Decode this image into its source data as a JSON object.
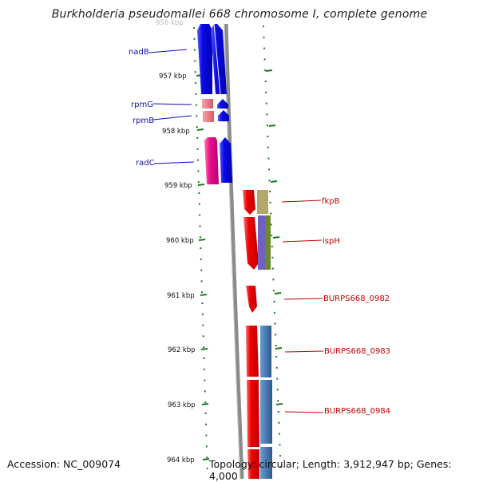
{
  "title": "Burkholderia pseudomallei 668 chromosome I, complete genome",
  "footer": {
    "accession": "Accession: NC_009074",
    "summary": "Topology: circular; Length: 3,912,947 bp; Genes: 4,000"
  },
  "scale": {
    "top_label": "956 kbp",
    "ticks": [
      "957 kbp",
      "958 kbp",
      "959 kbp",
      "960 kbp",
      "961 kbp",
      "962 kbp",
      "963 kbp",
      "964 kbp"
    ]
  },
  "genes": {
    "nadB": "nadB",
    "rpmG": "rpmG",
    "rpmB": "rpmB",
    "radC": "radC",
    "fkpB": "fkpB",
    "ispH": "ispH",
    "burps0982": "BURPS668_0982",
    "burps0983": "BURPS668_0983",
    "burps0984": "BURPS668_0984"
  },
  "colors": {
    "forward_cds": "#0a0ae0",
    "reverse_cds": "#ee0000",
    "rna": "#e86a78",
    "radC_gene": "#e8108a",
    "tick_green": "#1a7a1a",
    "backbone": "#8a8a8a",
    "olive": "#b3a86a",
    "purple": "#7060c0",
    "green_feature": "#6a8a2a",
    "steel_blue": "#3a70a8"
  }
}
